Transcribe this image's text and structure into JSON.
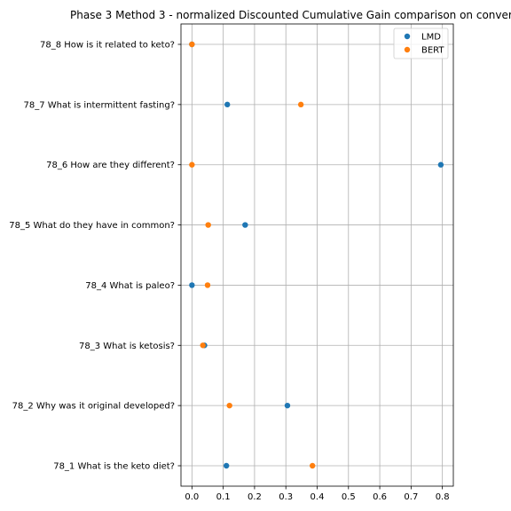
{
  "chart_data": {
    "type": "scatter",
    "title": "Phase 3 Method 3 - normalized Discounted Cumulative Gain comparison on conver",
    "xlabel": "",
    "ylabel": "",
    "xlim": [
      -0.035,
      0.835
    ],
    "x_ticks": [
      "0.0",
      "0.1",
      "0.2",
      "0.3",
      "0.4",
      "0.5",
      "0.6",
      "0.7",
      "0.8"
    ],
    "categories": [
      "78_1 What is the keto diet?",
      "78_2 Why was it original developed?",
      "78_3 What is ketosis?",
      "78_4 What is paleo?",
      "78_5 What do they have in common?",
      "78_6 How are they different?",
      "78_7 What is intermittent fasting?",
      "78_8 How is it related to keto?"
    ],
    "grid": true,
    "legend_position": "top-right",
    "series": [
      {
        "name": "LMD",
        "color": "#1f77b4",
        "values": [
          0.11,
          0.305,
          0.04,
          0.0,
          0.17,
          0.795,
          0.113,
          0.0
        ]
      },
      {
        "name": "BERT",
        "color": "#ff7f0e",
        "values": [
          0.385,
          0.12,
          0.035,
          0.05,
          0.052,
          0.0,
          0.348,
          0.0
        ]
      }
    ]
  }
}
